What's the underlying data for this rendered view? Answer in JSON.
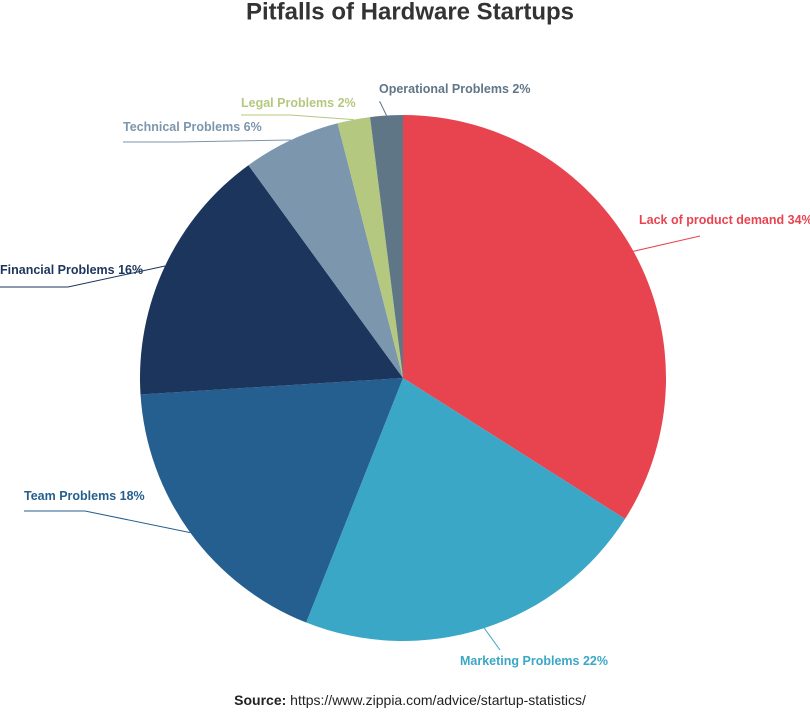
{
  "chart_data": {
    "type": "pie",
    "title": "Pitfalls of Hardware Startups",
    "categories": [
      "Lack of product demand",
      "Marketing Problems",
      "Team Problems",
      "Financial Problems",
      "Technical Problems",
      "Legal Problems",
      "Operational Problems"
    ],
    "values": [
      34,
      22,
      18,
      16,
      6,
      2,
      2
    ],
    "value_labels": [
      "34%",
      "22%",
      "18%",
      "16%",
      "6%",
      "2%",
      "2%"
    ],
    "colors": [
      "#e8444f",
      "#3aa7c7",
      "#255f8f",
      "#1b355d",
      "#7b96ad",
      "#b4c87f",
      "#5f7687"
    ],
    "source_label": "Source:",
    "source": "https://www.zippia.com/advice/startup-statistics/"
  }
}
